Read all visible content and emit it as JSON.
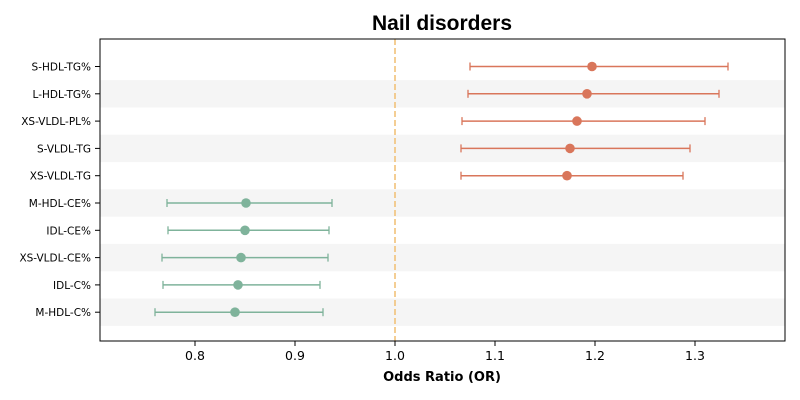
{
  "chart_data": {
    "type": "forest",
    "title": "Nail disorders",
    "xlabel": "Odds Ratio (OR)",
    "ylabel": "",
    "xlim": [
      0.705,
      1.39
    ],
    "xticks": [
      0.8,
      0.9,
      1.0,
      1.1,
      1.2,
      1.3
    ],
    "xtick_labels": [
      "0.8",
      "0.9",
      "1.0",
      "1.1",
      "1.2",
      "1.3"
    ],
    "reference_line": 1.0,
    "grid": false,
    "colors": {
      "positive": "#d9765b",
      "negative": "#7fb39b",
      "reference": "#f2c27a",
      "band": "#f5f5f5"
    },
    "rows": [
      {
        "label": "S-HDL-TG%",
        "or": 1.197,
        "low": 1.075,
        "high": 1.333,
        "direction": "positive"
      },
      {
        "label": "L-HDL-TG%",
        "or": 1.192,
        "low": 1.073,
        "high": 1.324,
        "direction": "positive"
      },
      {
        "label": "XS-VLDL-PL%",
        "or": 1.182,
        "low": 1.067,
        "high": 1.31,
        "direction": "positive"
      },
      {
        "label": "S-VLDL-TG",
        "or": 1.175,
        "low": 1.066,
        "high": 1.295,
        "direction": "positive"
      },
      {
        "label": "XS-VLDL-TG",
        "or": 1.172,
        "low": 1.066,
        "high": 1.288,
        "direction": "positive"
      },
      {
        "label": "M-HDL-CE%",
        "or": 0.851,
        "low": 0.772,
        "high": 0.937,
        "direction": "negative"
      },
      {
        "label": "IDL-CE%",
        "or": 0.85,
        "low": 0.773,
        "high": 0.934,
        "direction": "negative"
      },
      {
        "label": "XS-VLDL-CE%",
        "or": 0.846,
        "low": 0.767,
        "high": 0.933,
        "direction": "negative"
      },
      {
        "label": "IDL-C%",
        "or": 0.843,
        "low": 0.768,
        "high": 0.925,
        "direction": "negative"
      },
      {
        "label": "M-HDL-C%",
        "or": 0.84,
        "low": 0.76,
        "high": 0.928,
        "direction": "negative"
      }
    ]
  }
}
